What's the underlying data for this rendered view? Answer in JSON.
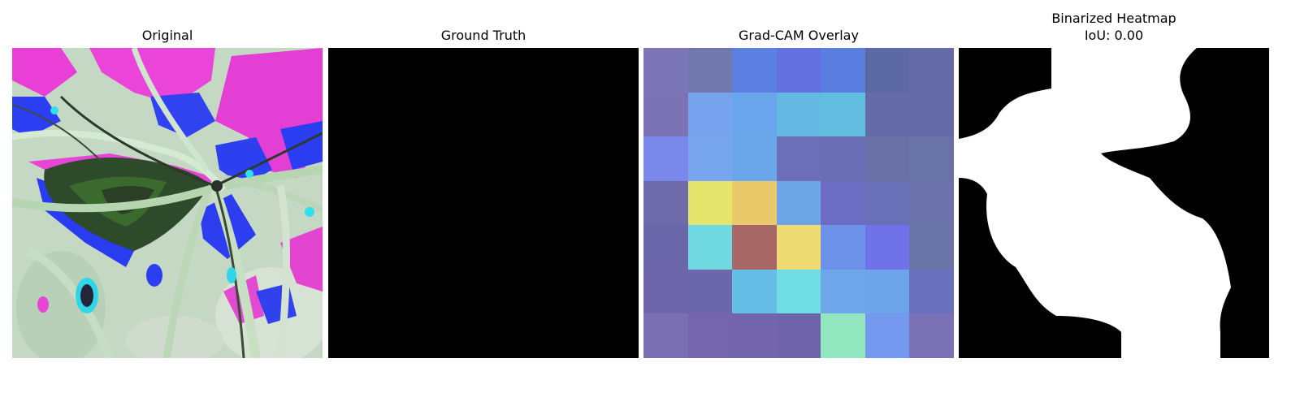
{
  "panels": {
    "original": {
      "title": "Original"
    },
    "ground_truth": {
      "title": "Ground Truth"
    },
    "gradcam": {
      "title": "Grad-CAM Overlay",
      "grid_colors": [
        [
          "#7c76b6",
          "#7278ac",
          "#5b80e1",
          "#6270e0",
          "#5a7ee0",
          "#5c69a5",
          "#646ba6"
        ],
        [
          "#7b73b4",
          "#76a2ee",
          "#69a6eb",
          "#63b9e2",
          "#63bde1",
          "#656ba6",
          "#646ba6"
        ],
        [
          "#7a88ec",
          "#77a6ef",
          "#6ba6eb",
          "#6c6fb8",
          "#6a6fb5",
          "#6870a6",
          "#6a73a7"
        ],
        [
          "#6f6aaa",
          "#e3e56d",
          "#eac96b",
          "#6da6e6",
          "#6b6cc2",
          "#6a70b8",
          "#6b73aa"
        ],
        [
          "#6c67aa",
          "#70d9e2",
          "#a86868",
          "#efdb73",
          "#6c92ea",
          "#6f72e8",
          "#6b74a6"
        ],
        [
          "#6e66aa",
          "#6c66ab",
          "#66bde6",
          "#70dde4",
          "#6ea7ea",
          "#6ea5ea",
          "#6a70bb"
        ],
        [
          "#7a6fb2",
          "#7565ad",
          "#7265ad",
          "#6f64aa",
          "#93e7c0",
          "#7499ee",
          "#7a72b4"
        ]
      ]
    },
    "binarized": {
      "title": "Binarized Heatmap",
      "subtitle": "IoU: 0.00"
    }
  }
}
